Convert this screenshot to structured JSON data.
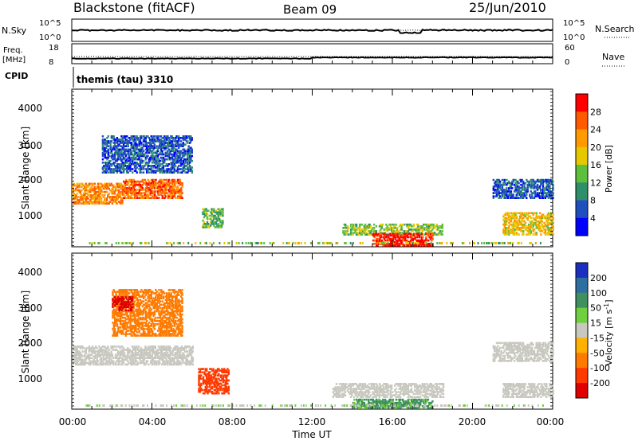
{
  "header": {
    "station": "Blackstone (fitACF)",
    "beam": "Beam 09",
    "date": "25/Jun/2010"
  },
  "status_panels": {
    "nsky_label": "N.Sky",
    "nsearch_label": "N.Search",
    "nsky_ticks": [
      "10^5",
      "10^0"
    ],
    "nsearch_ticks": [
      "10^5",
      "10^0"
    ],
    "freq_label": "Freq.",
    "freq_unit": "[MHz]",
    "freq_ticks": [
      "18",
      "8"
    ],
    "nave_label": "Nave",
    "nave_ticks": [
      "60",
      "0"
    ],
    "cpid_label": "CPID",
    "cpid_value": "themis (tau) 3310"
  },
  "power_panel": {
    "ylabel": "Slant Range [km]",
    "yticks": [
      "4000",
      "3000",
      "2000",
      "1000"
    ],
    "colorbar_label": "Power [dB]",
    "colorbar_ticks": [
      "28",
      "24",
      "20",
      "16",
      "12",
      "8",
      "4"
    ],
    "colorbar_colors": [
      "#ff0000",
      "#ff5a00",
      "#ff9a00",
      "#e6c800",
      "#5dbf3c",
      "#2f8f6a",
      "#1f4fbf",
      "#0000ff"
    ]
  },
  "velocity_panel": {
    "ylabel": "Slant Range [km]",
    "yticks": [
      "4000",
      "3000",
      "2000",
      "1000"
    ],
    "colorbar_label": "Velocity [m s^-1]",
    "colorbar_ticks": [
      "200",
      "100",
      "50",
      "15",
      "-15",
      "-50",
      "-100",
      "-200"
    ],
    "colorbar_colors": [
      "#1a2fbf",
      "#2f6f9f",
      "#3f8f5f",
      "#6fcf3f",
      "#c8c8c0",
      "#ffb000",
      "#ff7a00",
      "#ff3a00",
      "#e00000"
    ]
  },
  "xaxis": {
    "label": "Time UT",
    "ticks": [
      "00:00",
      "04:00",
      "08:00",
      "12:00",
      "16:00",
      "20:00",
      "00:00"
    ]
  },
  "chart_data": [
    {
      "type": "heatmap",
      "name": "power",
      "xlabel": "Time UT",
      "ylabel": "Slant Range [km]",
      "xlim": [
        0,
        24
      ],
      "ylim": [
        180,
        4500
      ],
      "colorbar_label": "Power [dB]",
      "colorbar_range": [
        0,
        30
      ],
      "regions": [
        {
          "t0": 0.0,
          "t1": 2.5,
          "r0": 1350,
          "r1": 1900,
          "value": 22
        },
        {
          "t0": 2.5,
          "t1": 5.5,
          "r0": 1500,
          "r1": 2000,
          "value": 24
        },
        {
          "t0": 1.5,
          "t1": 6.0,
          "r0": 2200,
          "r1": 3200,
          "value": 6
        },
        {
          "t0": 6.5,
          "t1": 7.5,
          "r0": 700,
          "r1": 1200,
          "value": 12
        },
        {
          "t0": 13.5,
          "t1": 18.5,
          "r0": 500,
          "r1": 800,
          "value": 14
        },
        {
          "t0": 15.0,
          "t1": 18.0,
          "r0": 200,
          "r1": 550,
          "value": 28
        },
        {
          "t0": 21.5,
          "t1": 24.0,
          "r0": 500,
          "r1": 1100,
          "value": 18
        },
        {
          "t0": 21.0,
          "t1": 24.0,
          "r0": 1500,
          "r1": 2000,
          "value": 6
        }
      ]
    },
    {
      "type": "heatmap",
      "name": "velocity",
      "xlabel": "Time UT",
      "ylabel": "Slant Range [km]",
      "xlim": [
        0,
        24
      ],
      "ylim": [
        180,
        4500
      ],
      "colorbar_label": "Velocity [m s^-1]",
      "colorbar_range": [
        -200,
        200
      ],
      "regions": [
        {
          "t0": 0.0,
          "t1": 6.0,
          "r0": 1400,
          "r1": 1900,
          "value": 0
        },
        {
          "t0": 2.0,
          "t1": 5.5,
          "r0": 2200,
          "r1": 3500,
          "value": -60
        },
        {
          "t0": 2.0,
          "t1": 3.0,
          "r0": 2900,
          "r1": 3300,
          "value": -200
        },
        {
          "t0": 6.3,
          "t1": 7.8,
          "r0": 600,
          "r1": 1300,
          "value": -90
        },
        {
          "t0": 13.0,
          "t1": 18.5,
          "r0": 500,
          "r1": 900,
          "value": 0
        },
        {
          "t0": 14.0,
          "t1": 18.0,
          "r0": 200,
          "r1": 450,
          "value": 40
        },
        {
          "t0": 21.5,
          "t1": 24.0,
          "r0": 500,
          "r1": 900,
          "value": 0
        },
        {
          "t0": 21.0,
          "t1": 24.0,
          "r0": 1500,
          "r1": 2000,
          "value": 0
        }
      ]
    }
  ]
}
